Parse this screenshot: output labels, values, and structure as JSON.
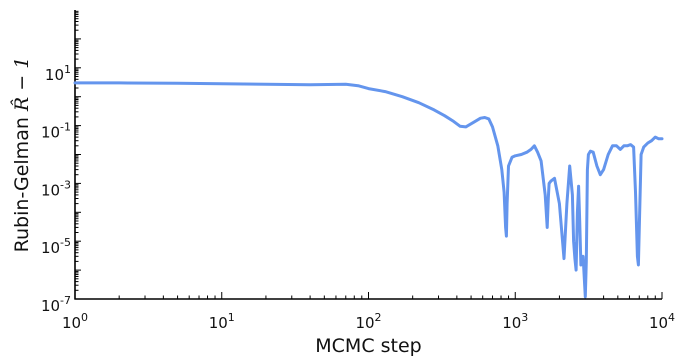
{
  "chart_data": {
    "type": "line",
    "title": "",
    "xlabel": "MCMC step",
    "ylabel": "Rubin-Gelman R̂ − 1",
    "ylabel_text": "Rubin-Gelman",
    "ylabel_math": "R̂ − 1",
    "xscale": "log",
    "yscale": "log",
    "xlim": [
      1,
      10000
    ],
    "ylim": [
      1e-07,
      1000
    ],
    "grid": false,
    "x_ticks": [
      {
        "value": 1,
        "base": "10",
        "exp": "0"
      },
      {
        "value": 10,
        "base": "10",
        "exp": "1"
      },
      {
        "value": 100,
        "base": "10",
        "exp": "2"
      },
      {
        "value": 1000,
        "base": "10",
        "exp": "3"
      },
      {
        "value": 10000,
        "base": "10",
        "exp": "4"
      }
    ],
    "y_ticks": [
      {
        "value": 1e-07,
        "base": "10",
        "exp": "-7"
      },
      {
        "value": 1e-05,
        "base": "10",
        "exp": "-5"
      },
      {
        "value": 0.001,
        "base": "10",
        "exp": "-3"
      },
      {
        "value": 0.1,
        "base": "10",
        "exp": "-1"
      },
      {
        "value": 10,
        "base": "10",
        "exp": "1"
      }
    ],
    "line_color": "#6495ED",
    "series": [
      {
        "x": [
          1,
          2,
          5,
          10,
          20,
          40,
          70,
          85,
          100,
          130,
          170,
          220,
          280,
          330,
          380,
          420,
          460,
          520,
          580,
          620,
          660,
          700,
          760,
          810,
          840,
          860,
          870,
          880,
          900,
          950,
          1000,
          1100,
          1200,
          1280,
          1350,
          1420,
          1500,
          1600,
          1650,
          1680,
          1700,
          1750,
          1850,
          2000,
          2150,
          2250,
          2350,
          2450,
          2500,
          2550,
          2600,
          2650,
          2700,
          2750,
          2800,
          2900,
          3000,
          3050,
          3100,
          3150,
          3250,
          3400,
          3600,
          3800,
          4000,
          4300,
          4600,
          4900,
          5200,
          5500,
          5800,
          6100,
          6400,
          6600,
          6800,
          6900,
          7000,
          7200,
          7500,
          8000,
          8500,
          9000,
          9500,
          10000
        ],
        "y": [
          3,
          3,
          2.9,
          2.8,
          2.7,
          2.6,
          2.7,
          2.4,
          1.9,
          1.5,
          1.0,
          0.62,
          0.35,
          0.22,
          0.14,
          0.095,
          0.09,
          0.13,
          0.18,
          0.19,
          0.17,
          0.09,
          0.02,
          0.003,
          0.0005,
          3e-05,
          1.5e-05,
          0.0002,
          0.004,
          0.008,
          0.009,
          0.01,
          0.012,
          0.015,
          0.02,
          0.012,
          0.006,
          0.0004,
          3e-05,
          0.0003,
          0.001,
          0.0012,
          0.0015,
          0.0002,
          2.5e-06,
          0.0002,
          0.004,
          0.0004,
          1e-05,
          2.5e-06,
          1e-06,
          0.0001,
          0.0008,
          5e-05,
          1.5e-06,
          3e-06,
          1.2e-07,
          2e-06,
          0.003,
          0.01,
          0.013,
          0.012,
          0.004,
          0.002,
          0.003,
          0.01,
          0.02,
          0.02,
          0.015,
          0.02,
          0.02,
          0.022,
          0.018,
          0.0005,
          3e-06,
          1.5e-06,
          3e-05,
          0.01,
          0.018,
          0.025,
          0.03,
          0.04,
          0.035,
          0.035
        ]
      }
    ]
  }
}
